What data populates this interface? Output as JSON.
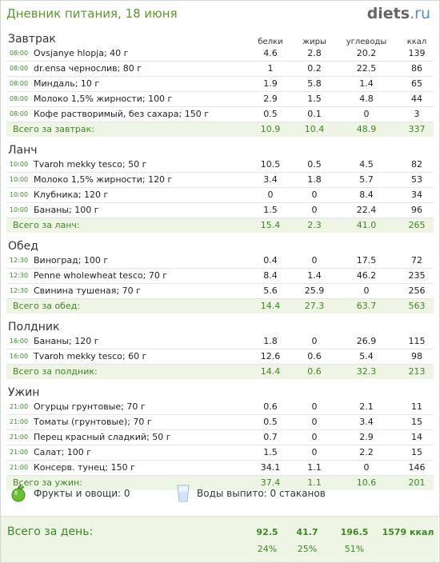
{
  "header": {
    "title": "Дневник питания, 18 июня",
    "logo_main": "diets",
    "logo_tld": ".ru"
  },
  "columns": [
    "белки",
    "жиры",
    "углеводы",
    "ккал"
  ],
  "meals": [
    {
      "name": "Завтрак",
      "items": [
        {
          "time": "08:00",
          "food": "Ovsjanye hlopja; 40 г",
          "p": "4.6",
          "f": "2.8",
          "c": "20.2",
          "k": "139"
        },
        {
          "time": "08:00",
          "food": "dr.ensa чернослив; 80 г",
          "p": "1",
          "f": "0.2",
          "c": "22.5",
          "k": "86"
        },
        {
          "time": "08:00",
          "food": "Миндаль; 10 г",
          "p": "1.9",
          "f": "5.8",
          "c": "1.4",
          "k": "65"
        },
        {
          "time": "08:00",
          "food": "Молоко 1,5% жирности; 100 г",
          "p": "2.9",
          "f": "1.5",
          "c": "4.8",
          "k": "44"
        },
        {
          "time": "08:00",
          "food": "Кофе растворимый, без сахара; 150 г",
          "p": "0.5",
          "f": "0.1",
          "c": "0",
          "k": "3"
        }
      ],
      "total": {
        "label": "Всего за завтрак:",
        "p": "10.9",
        "f": "10.4",
        "c": "48.9",
        "k": "337"
      }
    },
    {
      "name": "Ланч",
      "items": [
        {
          "time": "10:00",
          "food": "Tvaroh mekky tesco; 50 г",
          "p": "10.5",
          "f": "0.5",
          "c": "4.5",
          "k": "82"
        },
        {
          "time": "10:00",
          "food": "Молоко 1,5% жирности; 120 г",
          "p": "3.4",
          "f": "1.8",
          "c": "5.7",
          "k": "53"
        },
        {
          "time": "10:00",
          "food": "Клубника; 120 г",
          "p": "0",
          "f": "0",
          "c": "8.4",
          "k": "34"
        },
        {
          "time": "10:00",
          "food": "Бананы; 100 г",
          "p": "1.5",
          "f": "0",
          "c": "22.4",
          "k": "96"
        }
      ],
      "total": {
        "label": "Всего за ланч:",
        "p": "15.4",
        "f": "2.3",
        "c": "41.0",
        "k": "265"
      }
    },
    {
      "name": "Обед",
      "items": [
        {
          "time": "12:30",
          "food": "Виноград; 100 г",
          "p": "0.4",
          "f": "0",
          "c": "17.5",
          "k": "72"
        },
        {
          "time": "12:30",
          "food": "Penne wholewheat tesco; 70 г",
          "p": "8.4",
          "f": "1.4",
          "c": "46.2",
          "k": "235"
        },
        {
          "time": "12:30",
          "food": "Свинина тушеная; 70 г",
          "p": "5.6",
          "f": "25.9",
          "c": "0",
          "k": "256"
        }
      ],
      "total": {
        "label": "Всего за обед:",
        "p": "14.4",
        "f": "27.3",
        "c": "63.7",
        "k": "563"
      }
    },
    {
      "name": "Полдник",
      "items": [
        {
          "time": "16:00",
          "food": "Бананы; 120 г",
          "p": "1.8",
          "f": "0",
          "c": "26.9",
          "k": "115"
        },
        {
          "time": "16:00",
          "food": "Tvaroh mekky tesco; 60 г",
          "p": "12.6",
          "f": "0.6",
          "c": "5.4",
          "k": "98"
        }
      ],
      "total": {
        "label": "Всего за полдник:",
        "p": "14.4",
        "f": "0.6",
        "c": "32.3",
        "k": "213"
      }
    },
    {
      "name": "Ужин",
      "items": [
        {
          "time": "21:00",
          "food": "Огурцы грунтовые; 70 г",
          "p": "0.6",
          "f": "0",
          "c": "2.1",
          "k": "11"
        },
        {
          "time": "21:00",
          "food": "Томаты (грунтовые); 70 г",
          "p": "0.5",
          "f": "0",
          "c": "3.4",
          "k": "15"
        },
        {
          "time": "21:00",
          "food": "Перец красный сладкий; 50 г",
          "p": "0.7",
          "f": "0",
          "c": "2.9",
          "k": "14"
        },
        {
          "time": "21:00",
          "food": "Салат; 100 г",
          "p": "1.5",
          "f": "0",
          "c": "2.2",
          "k": "15"
        },
        {
          "time": "21:00",
          "food": "Консерв. тунец; 150 г",
          "p": "34.1",
          "f": "1.1",
          "c": "0",
          "k": "146"
        }
      ],
      "total": {
        "label": "Всего за ужин:",
        "p": "37.4",
        "f": "1.1",
        "c": "10.6",
        "k": "201"
      }
    }
  ],
  "extras": {
    "fruit_icon": "apple-icon",
    "fruit_text": "Фрукты и овощи: 0",
    "water_icon": "glass-icon",
    "water_text": "Воды выпито: 0 стаканов"
  },
  "day_total": {
    "label": "Всего за день:",
    "p": "92.5",
    "f": "41.7",
    "c": "196.5",
    "k": "1579 ккал",
    "p_pct": "24%",
    "f_pct": "25%",
    "c_pct": "51%"
  },
  "colors": {
    "accent": "#3a8a1f",
    "title": "#5a9a2a",
    "total_bg": "#eef5e4",
    "logo_tld": "#4a8fd4"
  }
}
